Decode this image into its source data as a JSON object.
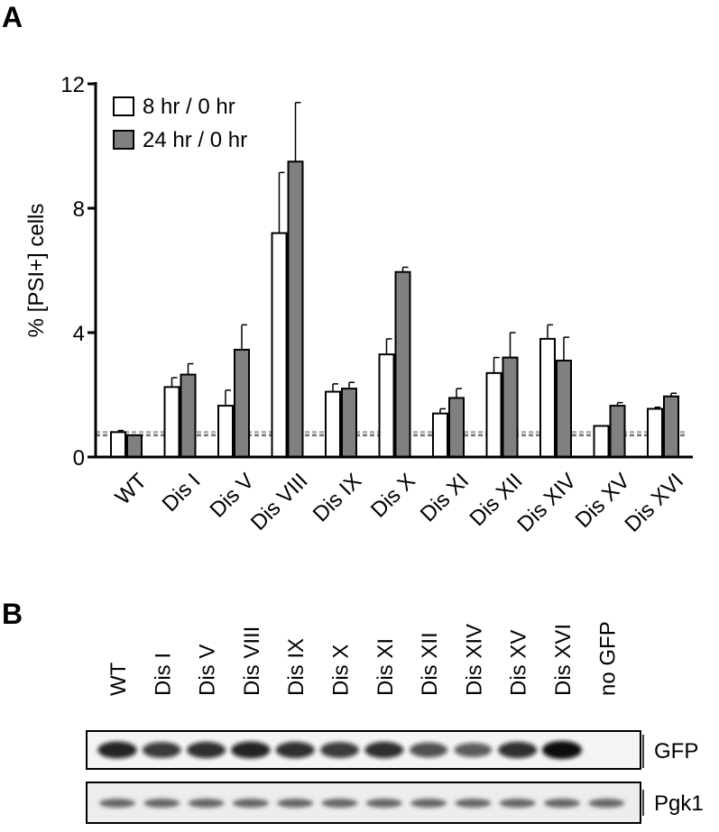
{
  "panel_labels": [
    "A",
    "B"
  ],
  "chart_data": {
    "type": "bar",
    "ylabel": "% [PSI+] cells",
    "categories": [
      "WT",
      "Dis I",
      "Dis V",
      "Dis VIII",
      "Dis IX",
      "Dis X",
      "Dis XI",
      "Dis XII",
      "Dis XIV",
      "Dis XV",
      "Dis XVI"
    ],
    "series": [
      {
        "name": "8 hr / 0 hr",
        "color": "#ffffff",
        "values": [
          0.8,
          2.25,
          1.65,
          7.2,
          2.1,
          3.3,
          1.4,
          2.7,
          3.8,
          1.0,
          1.55
        ],
        "errors": [
          0.05,
          0.3,
          0.5,
          1.95,
          0.25,
          0.5,
          0.15,
          0.5,
          0.45,
          0.0,
          0.05
        ]
      },
      {
        "name": "24 hr / 0 hr",
        "color": "#808080",
        "values": [
          0.7,
          2.65,
          3.45,
          9.5,
          2.2,
          5.95,
          1.9,
          3.2,
          3.1,
          1.65,
          1.95
        ],
        "errors": [
          0.0,
          0.35,
          0.8,
          1.9,
          0.2,
          0.15,
          0.3,
          0.8,
          0.75,
          0.1,
          0.1
        ]
      }
    ],
    "dashed_lines": [
      0.8,
      0.7
    ],
    "ylim": [
      0,
      12
    ],
    "yticks": [
      0,
      4,
      8,
      12
    ],
    "legend": "upper-left"
  },
  "blot": {
    "lanes": [
      "WT",
      "Dis I",
      "Dis V",
      "Dis VIII",
      "Dis IX",
      "Dis X",
      "Dis XI",
      "Dis XII",
      "Dis XIV",
      "Dis XV",
      "Dis XVI",
      "no GFP"
    ],
    "bands": [
      "GFP",
      "Pgk1"
    ]
  }
}
